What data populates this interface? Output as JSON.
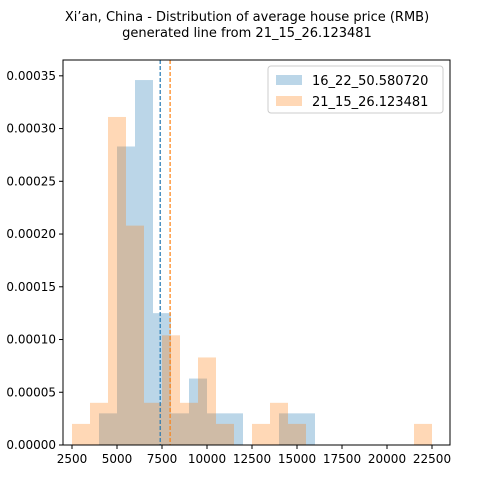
{
  "chart_data": {
    "type": "histogram",
    "title": "Xi’an, China - Distribution of average house price (RMB)",
    "subtitle": "generated line from 21_15_26.123481",
    "xlabel": "",
    "ylabel": "",
    "xlim": [
      2000,
      23500
    ],
    "ylim": [
      0,
      0.000365
    ],
    "x_ticks": [
      2500,
      5000,
      7500,
      10000,
      12500,
      15000,
      17500,
      20000,
      22500
    ],
    "x_tick_labels": [
      "2500",
      "5000",
      "7500",
      "10000",
      "12500",
      "15000",
      "17500",
      "20000",
      "22500"
    ],
    "y_ticks": [
      0,
      5e-05,
      0.0001,
      0.00015,
      0.0002,
      0.00025,
      0.0003,
      0.00035
    ],
    "y_tick_labels": [
      "0.00000",
      "0.00005",
      "0.00010",
      "0.00015",
      "0.00020",
      "0.00025",
      "0.00030",
      "0.00035"
    ],
    "legend_position": "top-right",
    "series": [
      {
        "name": "16_22_50.580720",
        "color": "#1f77b4",
        "opacity": 0.3,
        "mean_line": 7400,
        "bins": [
          {
            "x0": 4000,
            "x1": 5000,
            "y": 3e-05
          },
          {
            "x0": 5000,
            "x1": 6000,
            "y": 0.000283
          },
          {
            "x0": 6000,
            "x1": 7000,
            "y": 0.000346
          },
          {
            "x0": 7000,
            "x1": 8000,
            "y": 0.000125
          },
          {
            "x0": 8000,
            "x1": 9000,
            "y": 3e-05
          },
          {
            "x0": 9000,
            "x1": 10000,
            "y": 6.3e-05
          },
          {
            "x0": 10000,
            "x1": 11000,
            "y": 3e-05
          },
          {
            "x0": 11000,
            "x1": 12000,
            "y": 3e-05
          },
          {
            "x0": 14000,
            "x1": 15000,
            "y": 3e-05
          },
          {
            "x0": 15000,
            "x1": 16000,
            "y": 3e-05
          }
        ]
      },
      {
        "name": "21_15_26.123481",
        "color": "#ff7f0e",
        "opacity": 0.3,
        "mean_line": 7950,
        "bins": [
          {
            "x0": 2500,
            "x1": 3500,
            "y": 2e-05
          },
          {
            "x0": 3500,
            "x1": 4500,
            "y": 4e-05
          },
          {
            "x0": 4500,
            "x1": 5500,
            "y": 0.000311
          },
          {
            "x0": 5500,
            "x1": 6500,
            "y": 0.000208
          },
          {
            "x0": 6500,
            "x1": 7500,
            "y": 4e-05
          },
          {
            "x0": 7500,
            "x1": 8500,
            "y": 0.000104
          },
          {
            "x0": 8500,
            "x1": 9500,
            "y": 4e-05
          },
          {
            "x0": 9500,
            "x1": 10500,
            "y": 8.3e-05
          },
          {
            "x0": 10500,
            "x1": 11500,
            "y": 2e-05
          },
          {
            "x0": 12500,
            "x1": 13500,
            "y": 2e-05
          },
          {
            "x0": 13500,
            "x1": 14500,
            "y": 4e-05
          },
          {
            "x0": 14500,
            "x1": 15500,
            "y": 2e-05
          },
          {
            "x0": 21500,
            "x1": 22500,
            "y": 2e-05
          }
        ]
      }
    ]
  }
}
